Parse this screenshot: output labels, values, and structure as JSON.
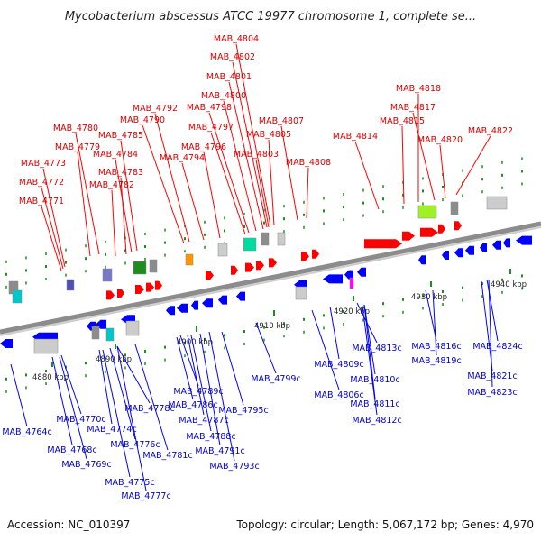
{
  "title": "Mycobacterium abscessus ATCC 19977 chromosome 1, complete se...",
  "footer": {
    "accession": "Accession: NC_010397",
    "topology": "Topology: circular; Length: 5,067,172 bp; Genes: 4,970"
  },
  "colors": {
    "plus_strand": "#ff0000",
    "minus_strand": "#0000ff",
    "top_label": "#d40000",
    "bottom_label": "#0000c8",
    "backbone": "#8c8c8c"
  },
  "ticks": [
    "4880 kbp",
    "4890 kbp",
    "4900 kbp",
    "4910 kbp",
    "4920 kbp",
    "4930 kbp",
    "4940 kbp"
  ],
  "top_labels": [
    "MAB_4804",
    "MAB_4802",
    "MAB_4801",
    "MAB_4800",
    "MAB_4792",
    "MAB_4798",
    "MAB_4780",
    "MAB_4790",
    "MAB_4797",
    "MAB_4807",
    "MAB_4785",
    "MAB_4805",
    "MAB_4779",
    "MAB_4796",
    "MAB_4784",
    "MAB_4794",
    "MAB_4803",
    "MAB_4773",
    "MAB_4808",
    "MAB_4783",
    "MAB_4772",
    "MAB_4782",
    "MAB_4771",
    "MAB_4818",
    "MAB_4817",
    "MAB_4815",
    "MAB_4822",
    "MAB_4814",
    "MAB_4820"
  ],
  "bottom_labels": [
    "MAB_4813c",
    "MAB_4816c",
    "MAB_4824c",
    "MAB_4809c",
    "MAB_4819c",
    "MAB_4799c",
    "MAB_4810c",
    "MAB_4821c",
    "MAB_4806c",
    "MAB_4789c",
    "MAB_4823c",
    "MAB_4778c",
    "MAB_4786c",
    "MAB_4811c",
    "MAB_4795c",
    "MAB_4770c",
    "MAB_4787c",
    "MAB_4812c",
    "MAB_4764c",
    "MAB_4774c",
    "MAB_4788c",
    "MAB_4768c",
    "MAB_4776c",
    "MAB_4791c",
    "MAB_4781c",
    "MAB_4769c",
    "MAB_4793c",
    "MAB_4775c",
    "MAB_4777c"
  ]
}
